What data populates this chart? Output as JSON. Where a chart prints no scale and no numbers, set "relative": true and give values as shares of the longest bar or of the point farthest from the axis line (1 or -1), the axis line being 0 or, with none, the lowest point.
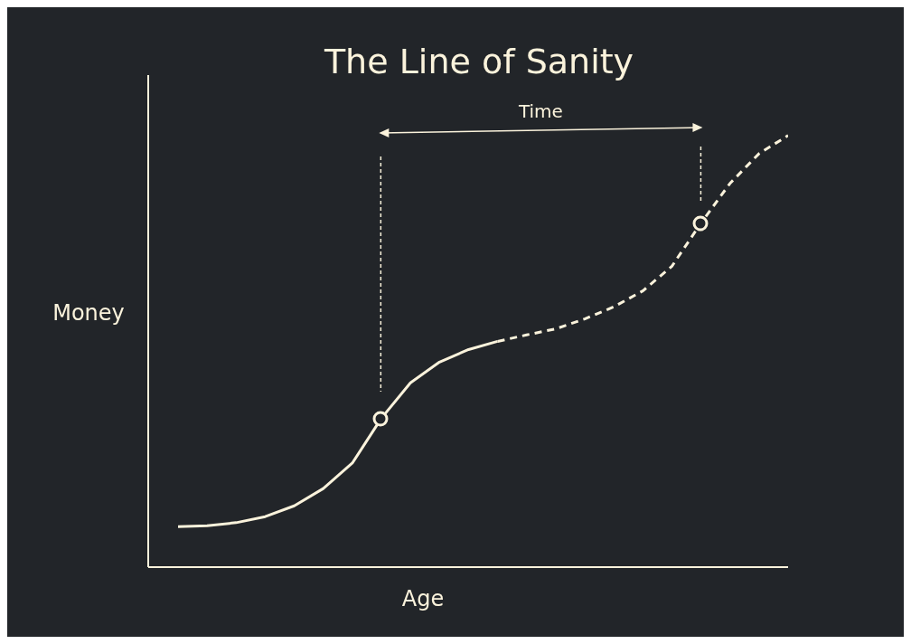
{
  "chart_data": {
    "type": "line",
    "title": "The Line of Sanity",
    "xlabel": "Age",
    "ylabel": "Money",
    "annotations": [
      "Time"
    ],
    "relative": true,
    "categories": [
      null,
      null,
      null,
      null,
      null,
      null,
      null,
      null,
      null,
      null,
      null,
      null,
      null,
      null,
      null,
      null,
      null,
      null,
      null,
      null,
      null,
      null
    ],
    "series": [
      {
        "color": "#fbf3dc",
        "line_style": "solid",
        "marker": "none",
        "values": [
          0.094,
          0.096,
          0.103,
          0.117,
          0.142,
          0.182,
          0.241,
          0.345,
          0.427,
          0.475,
          0.504,
          0.523,
          null,
          null,
          null,
          null,
          null,
          null,
          null,
          null,
          null,
          null
        ]
      },
      {
        "color": "#fbf3dc",
        "line_style": "dashed",
        "marker": "none",
        "values": [
          null,
          null,
          null,
          null,
          null,
          null,
          null,
          null,
          null,
          null,
          null,
          0.523,
          0.538,
          0.552,
          0.575,
          0.603,
          0.64,
          0.697,
          0.797,
          0.889,
          0.958,
          1
        ]
      }
    ]
  }
}
